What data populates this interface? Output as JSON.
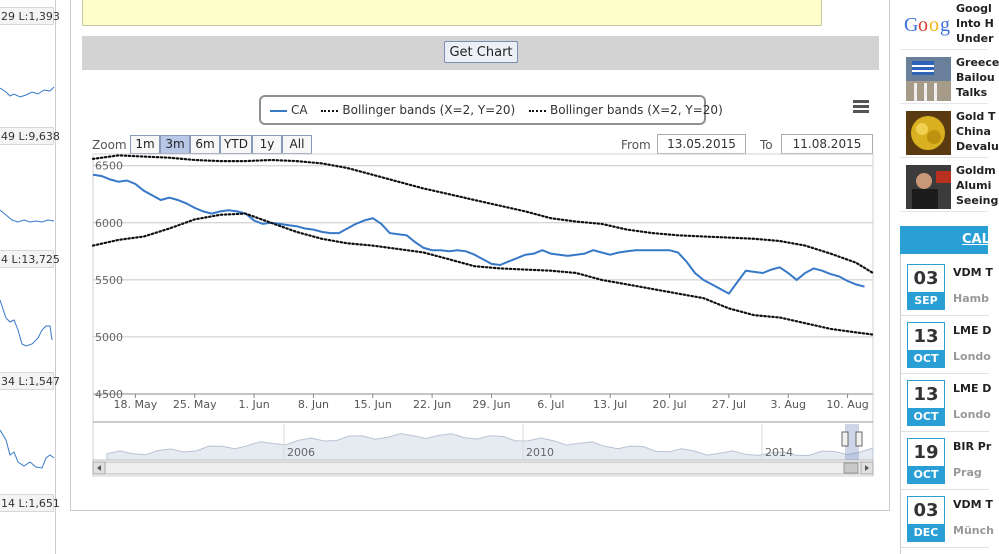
{
  "left_sparklines": {
    "labels": [
      "29 L:1,393",
      "49 L:9,638",
      "4 L:13,725",
      "34 L:1,547",
      "14 L:1,651"
    ]
  },
  "toolbar": {
    "get_chart_label": "Get Chart"
  },
  "legend": {
    "items": [
      {
        "label": "CA",
        "style": "solid",
        "color": "#3778c8"
      },
      {
        "label": "Bollinger bands (X=2, Y=20)",
        "style": "dotted",
        "color": "#111111"
      },
      {
        "label": "Bollinger bands (X=2, Y=20)",
        "style": "dotted",
        "color": "#111111"
      }
    ]
  },
  "range_selector": {
    "zoom_label": "Zoom",
    "buttons": [
      "1m",
      "3m",
      "6m",
      "YTD",
      "1y",
      "All"
    ],
    "active": "3m",
    "from_label": "From",
    "from_value": "13.05.2015",
    "to_label": "To",
    "to_value": "11.08.2015"
  },
  "chart_data": {
    "type": "line",
    "y_ticks": [
      4500,
      5000,
      5500,
      6000,
      6500
    ],
    "ylim": [
      4500,
      6550
    ],
    "x_tick_labels": [
      "18. May",
      "25. May",
      "1. Jun",
      "8. Jun",
      "15. Jun",
      "22. Jun",
      "29. Jun",
      "6. Jul",
      "13. Jul",
      "20. Jul",
      "27. Jul",
      "3. Aug",
      "10. Aug"
    ],
    "x_tick_days": [
      5,
      12,
      19,
      26,
      33,
      40,
      47,
      54,
      61,
      68,
      75,
      82,
      89
    ],
    "x_domain_days": [
      0,
      92
    ],
    "x_day_reference": "13.05.2015",
    "grid": true,
    "legend_placement": "top-center",
    "series": [
      {
        "name": "CA",
        "color": "#3778c8",
        "style": "solid",
        "x": [
          0,
          1,
          2,
          3,
          4,
          5,
          6,
          7,
          8,
          9,
          10,
          11,
          12,
          13,
          14,
          15,
          16,
          17,
          18,
          19,
          20,
          21,
          22,
          23,
          24,
          25,
          26,
          27,
          28,
          29,
          30,
          31,
          32,
          33,
          34,
          35,
          36,
          37,
          38,
          39,
          40,
          41,
          42,
          43,
          44,
          45,
          46,
          47,
          48,
          49,
          50,
          51,
          52,
          53,
          54,
          55,
          56,
          57,
          58,
          59,
          60,
          61,
          62,
          63,
          64,
          65,
          66,
          67,
          68,
          69,
          70,
          71,
          72,
          73,
          74,
          75,
          76,
          77,
          78,
          79,
          80,
          81,
          82,
          83,
          84,
          85,
          86,
          87,
          88,
          89,
          90,
          91
        ],
        "y": [
          6420,
          6410,
          6380,
          6360,
          6370,
          6340,
          6280,
          6240,
          6200,
          6220,
          6200,
          6170,
          6130,
          6100,
          6080,
          6100,
          6110,
          6100,
          6080,
          6020,
          5990,
          6000,
          5990,
          5980,
          5970,
          5950,
          5940,
          5920,
          5910,
          5910,
          5950,
          5990,
          6020,
          6040,
          5990,
          5910,
          5900,
          5890,
          5830,
          5780,
          5760,
          5760,
          5750,
          5760,
          5750,
          5720,
          5680,
          5640,
          5630,
          5660,
          5690,
          5720,
          5730,
          5760,
          5730,
          5720,
          5710,
          5720,
          5730,
          5760,
          5740,
          5720,
          5740,
          5750,
          5760,
          5760,
          5760,
          5760,
          5760,
          5740,
          5660,
          5560,
          5500,
          5460,
          5420,
          5380,
          5480,
          5580,
          5570,
          5560,
          5590,
          5610,
          5560,
          5500,
          5560,
          5600,
          5580,
          5550,
          5530,
          5490,
          5460,
          5440
        ],
        "y_extra_note": ""
      },
      {
        "name": "Bollinger bands (X=2, Y=20)",
        "color": "#111111",
        "style": "dotted",
        "x": [
          0,
          3,
          6,
          9,
          12,
          15,
          18,
          21,
          24,
          27,
          30,
          33,
          36,
          39,
          42,
          45,
          48,
          51,
          54,
          57,
          60,
          63,
          66,
          69,
          72,
          75,
          78,
          81,
          84,
          87,
          90,
          92
        ],
        "y": [
          6560,
          6590,
          6580,
          6570,
          6550,
          6540,
          6540,
          6550,
          6540,
          6520,
          6480,
          6420,
          6360,
          6300,
          6250,
          6200,
          6150,
          6100,
          6040,
          6010,
          5990,
          5940,
          5910,
          5890,
          5880,
          5870,
          5860,
          5840,
          5800,
          5730,
          5650,
          5560
        ]
      },
      {
        "name": "Bollinger bands (X=2, Y=20)",
        "color": "#111111",
        "style": "dotted",
        "x": [
          0,
          3,
          6,
          9,
          12,
          15,
          18,
          21,
          24,
          27,
          30,
          33,
          36,
          39,
          42,
          45,
          48,
          51,
          54,
          57,
          60,
          63,
          66,
          69,
          72,
          75,
          78,
          81,
          84,
          87,
          90,
          92
        ],
        "y": [
          5800,
          5850,
          5880,
          5950,
          6030,
          6070,
          6080,
          6000,
          5920,
          5860,
          5820,
          5800,
          5770,
          5740,
          5680,
          5620,
          5600,
          5590,
          5580,
          5560,
          5500,
          5460,
          5420,
          5380,
          5340,
          5250,
          5190,
          5170,
          5120,
          5070,
          5040,
          5020
        ]
      }
    ]
  },
  "navigator": {
    "year_labels": [
      "2006",
      "2010",
      "2014"
    ]
  },
  "news": {
    "items": [
      {
        "thumb": "google-thumb",
        "lines": [
          "Googl",
          "Into H",
          "Under"
        ]
      },
      {
        "thumb": "greece-thumb",
        "lines": [
          "Greece",
          "Bailou",
          "Talks"
        ]
      },
      {
        "thumb": "gold-thumb",
        "lines": [
          "Gold T",
          "China",
          "Devalu"
        ]
      },
      {
        "thumb": "goldman-thumb",
        "lines": [
          "Goldm",
          "Alumi",
          "Seeing"
        ]
      }
    ]
  },
  "calendar": {
    "header": "CAL",
    "events": [
      {
        "day": "03",
        "month": "SEP",
        "title": "VDM T",
        "location": "Hamb"
      },
      {
        "day": "13",
        "month": "OCT",
        "title": "LME D",
        "location": "Londo"
      },
      {
        "day": "13",
        "month": "OCT",
        "title": "LME D",
        "location": "Londo"
      },
      {
        "day": "19",
        "month": "OCT",
        "title": "BIR Pr",
        "location": "Prag"
      },
      {
        "day": "03",
        "month": "DEC",
        "title": "VDM T",
        "location": "Münch"
      }
    ]
  }
}
